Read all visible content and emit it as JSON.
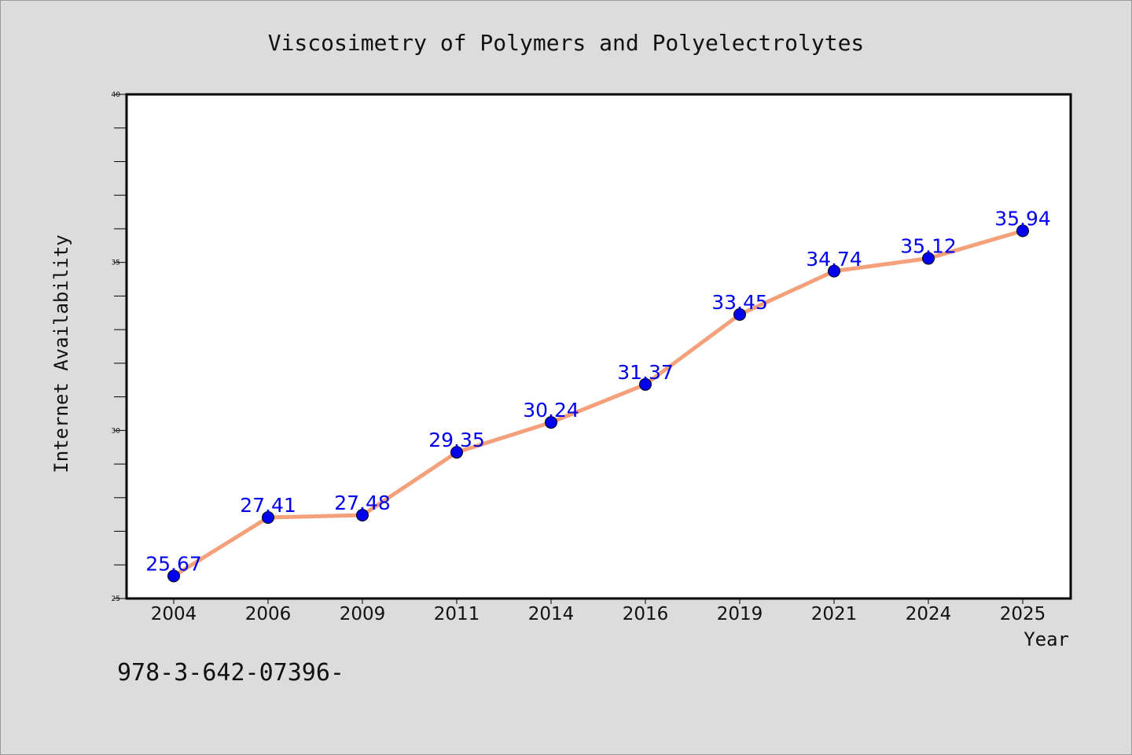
{
  "colors": {
    "background": "#dcdcdc",
    "plot_background": "#ffffff",
    "line": "#f4a07a",
    "marker": "#0000ee",
    "label": "#0000ee"
  },
  "footer": {
    "text": "978-3-642-07396-"
  },
  "chart_data": {
    "type": "line",
    "title": "Viscosimetry of Polymers and Polyelectrolytes",
    "xlabel": "Year",
    "ylabel": "Internet Availability",
    "categories": [
      "2004",
      "2006",
      "2009",
      "2011",
      "2014",
      "2016",
      "2019",
      "2021",
      "2024",
      "2025"
    ],
    "series": [
      {
        "values": [
          25.67,
          27.41,
          27.48,
          29.35,
          30.24,
          31.37,
          33.45,
          34.74,
          35.12,
          35.94
        ],
        "labels": [
          "25.67",
          "27.41",
          "27.48",
          "29.35",
          "30.24",
          "31.37",
          "33.45",
          "34.74",
          "35.12",
          "35.94"
        ]
      }
    ],
    "ylim": [
      25,
      40
    ],
    "yticks": [
      "25",
      "30",
      "35",
      "40"
    ],
    "grid": false,
    "legend": "none"
  }
}
